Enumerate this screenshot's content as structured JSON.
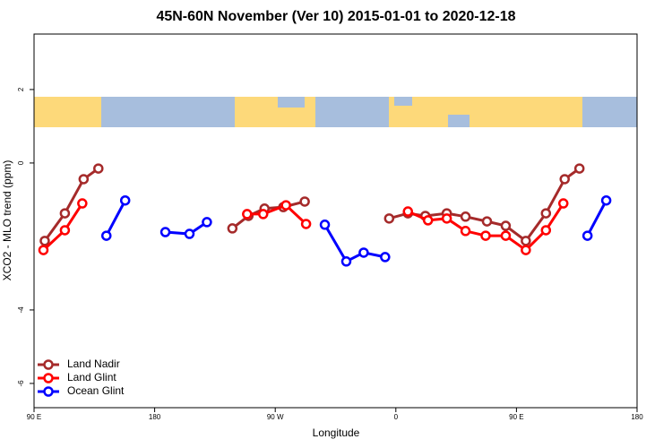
{
  "chart_data": {
    "type": "line",
    "title": "45N-60N November (Ver 10)   2015-01-01 to 2020-12-18",
    "x_label": "Longitude",
    "y_label": "XCO2 - MLO trend (ppm)",
    "xlim": [
      90,
      540
    ],
    "xticks": [
      {
        "value": 90,
        "label": "90 E"
      },
      180,
      {
        "value": 270,
        "label": "90 W"
      },
      {
        "value": 360,
        "label": "0"
      },
      {
        "value": 450,
        "label": "90 E"
      },
      {
        "value": 540,
        "label": "180"
      }
    ],
    "ylim": [
      -6.66,
      3.51
    ],
    "yticks": [
      2,
      0,
      -4,
      -6
    ],
    "legend": "bottomleft",
    "series": [
      {
        "name": "Land Nadir",
        "color": "#A52A2A",
        "x": [
          98,
          113,
          127,
          138,
          null,
          238,
          250,
          262,
          276,
          292,
          null,
          355,
          369,
          382,
          398,
          412,
          428,
          442,
          457,
          472,
          486,
          497
        ],
        "values": [
          -2.12,
          -1.37,
          -0.44,
          -0.15,
          null,
          -1.78,
          -1.44,
          -1.24,
          -1.2,
          -1.05,
          null,
          -1.51,
          -1.37,
          -1.44,
          -1.37,
          -1.46,
          -1.59,
          -1.71,
          -2.12,
          -1.37,
          -0.44,
          -0.15
        ]
      },
      {
        "name": "Land Glint",
        "color": "#FF0000",
        "x": [
          97,
          113,
          126,
          null,
          249,
          261,
          278,
          293,
          null,
          369,
          384,
          398,
          412,
          427,
          442,
          457,
          472,
          485
        ],
        "values": [
          -2.37,
          -1.83,
          -1.1,
          null,
          -1.39,
          -1.39,
          -1.15,
          -1.66,
          null,
          -1.32,
          -1.56,
          -1.51,
          -1.85,
          -1.98,
          -1.98,
          -2.37,
          -1.83,
          -1.1
        ]
      },
      {
        "name": "Ocean Glint",
        "color": "#0000FF",
        "x": [
          144,
          158,
          null,
          188,
          206,
          219,
          null,
          307,
          323,
          336,
          352,
          null,
          503,
          517
        ],
        "values": [
          -1.98,
          -1.02,
          null,
          -1.88,
          -1.93,
          -1.61,
          null,
          -1.68,
          -2.68,
          -2.44,
          -2.56,
          null,
          -1.98,
          -1.02
        ]
      }
    ]
  }
}
